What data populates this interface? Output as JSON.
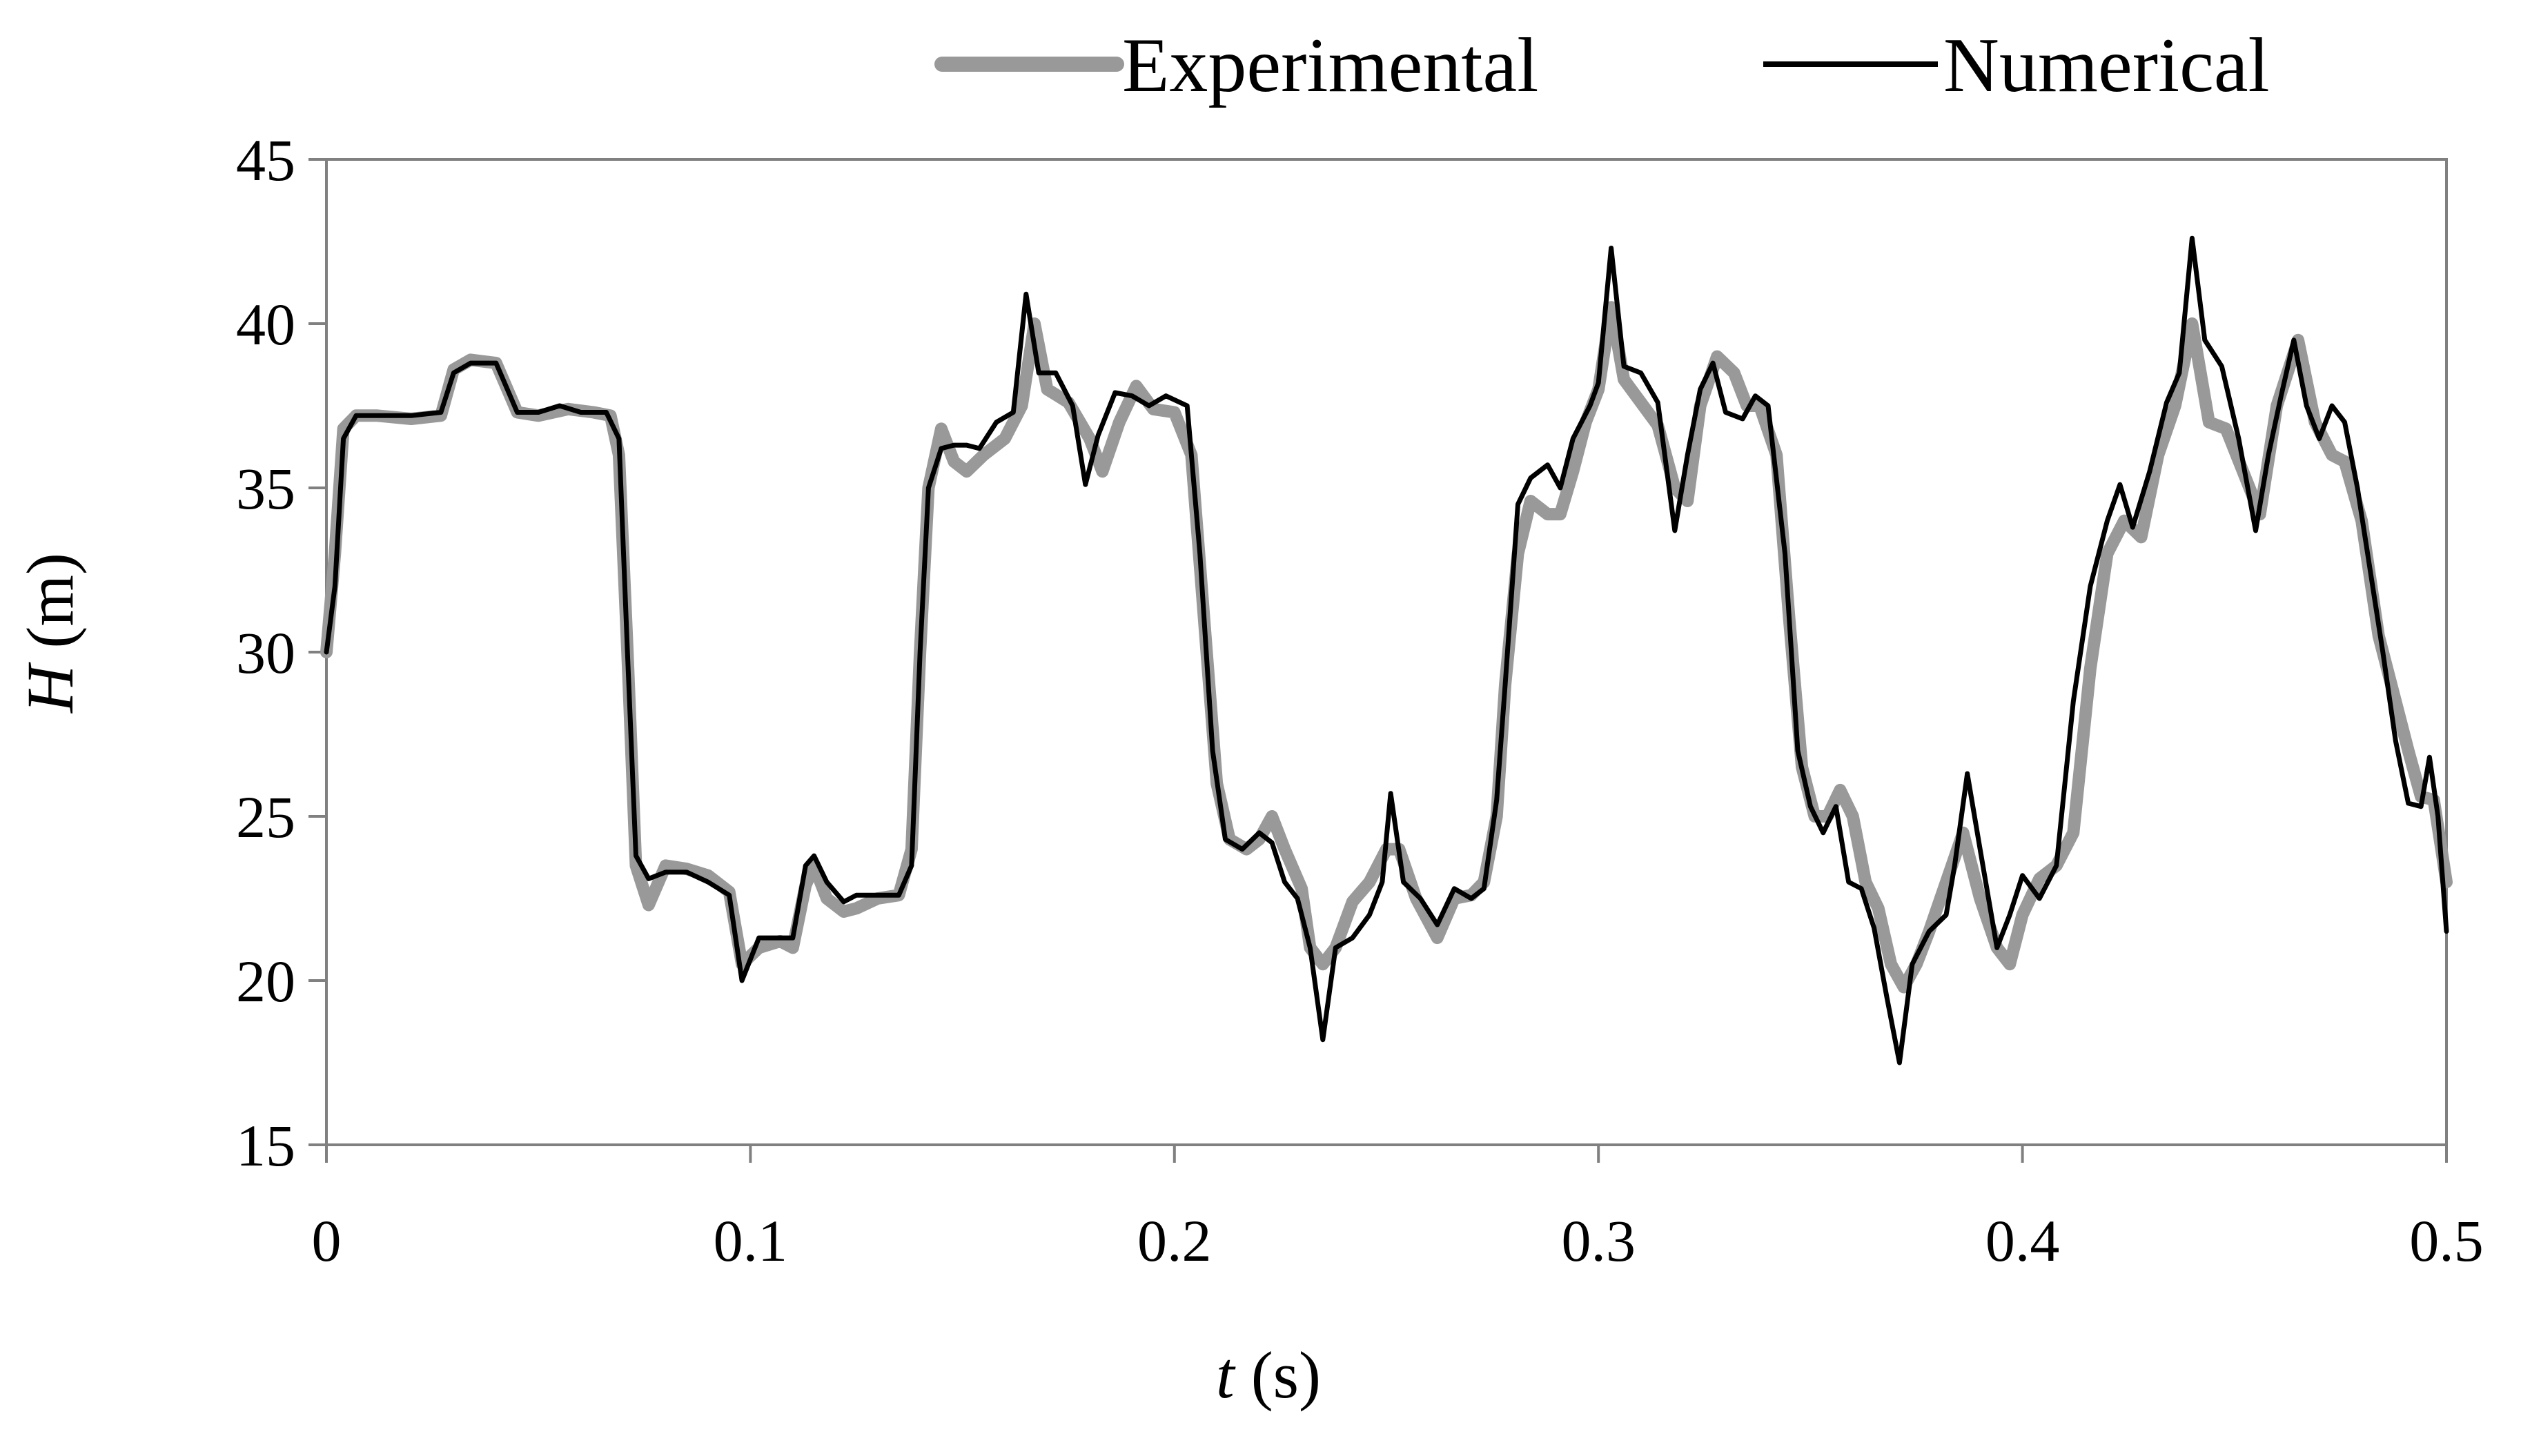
{
  "chart_data": {
    "type": "line",
    "title": "",
    "xlabel": "t (s)",
    "xlabel_italic": "t",
    "xlabel_rest": " (s)",
    "ylabel": "H (m)",
    "ylabel_italic": "H",
    "ylabel_rest": " (m)",
    "xlim": [
      0,
      0.5
    ],
    "ylim": [
      15,
      45
    ],
    "xticks": [
      "0",
      "0.1",
      "0.2",
      "0.3",
      "0.4",
      "0.5"
    ],
    "yticks": [
      "15",
      "20",
      "25",
      "30",
      "35",
      "40",
      "45"
    ],
    "grid": false,
    "legend_position": "top",
    "series": [
      {
        "name": "Experimental",
        "color": "#999999",
        "points": [
          [
            0,
            30
          ],
          [
            0.002,
            33
          ],
          [
            0.004,
            36.8
          ],
          [
            0.007,
            37.2
          ],
          [
            0.012,
            37.2
          ],
          [
            0.02,
            37.1
          ],
          [
            0.027,
            37.2
          ],
          [
            0.03,
            38.6
          ],
          [
            0.034,
            38.9
          ],
          [
            0.04,
            38.8
          ],
          [
            0.045,
            37.3
          ],
          [
            0.05,
            37.2
          ],
          [
            0.057,
            37.4
          ],
          [
            0.063,
            37.3
          ],
          [
            0.067,
            37.2
          ],
          [
            0.069,
            36
          ],
          [
            0.071,
            30
          ],
          [
            0.073,
            23.5
          ],
          [
            0.076,
            22.3
          ],
          [
            0.08,
            23.5
          ],
          [
            0.085,
            23.4
          ],
          [
            0.09,
            23.2
          ],
          [
            0.095,
            22.7
          ],
          [
            0.098,
            20.5
          ],
          [
            0.102,
            21
          ],
          [
            0.107,
            21.2
          ],
          [
            0.11,
            21
          ],
          [
            0.113,
            22.9
          ],
          [
            0.115,
            23.5
          ],
          [
            0.118,
            22.5
          ],
          [
            0.122,
            22.1
          ],
          [
            0.125,
            22.2
          ],
          [
            0.13,
            22.5
          ],
          [
            0.135,
            22.6
          ],
          [
            0.138,
            24
          ],
          [
            0.14,
            30
          ],
          [
            0.142,
            35
          ],
          [
            0.145,
            36.8
          ],
          [
            0.148,
            35.8
          ],
          [
            0.151,
            35.5
          ],
          [
            0.155,
            36
          ],
          [
            0.16,
            36.5
          ],
          [
            0.164,
            37.5
          ],
          [
            0.167,
            40
          ],
          [
            0.17,
            38
          ],
          [
            0.175,
            37.6
          ],
          [
            0.18,
            36.5
          ],
          [
            0.183,
            35.5
          ],
          [
            0.187,
            37
          ],
          [
            0.191,
            38.1
          ],
          [
            0.195,
            37.4
          ],
          [
            0.2,
            37.3
          ],
          [
            0.204,
            36
          ],
          [
            0.207,
            31
          ],
          [
            0.21,
            26
          ],
          [
            0.213,
            24.3
          ],
          [
            0.217,
            24
          ],
          [
            0.22,
            24.3
          ],
          [
            0.223,
            25
          ],
          [
            0.226,
            24
          ],
          [
            0.23,
            22.8
          ],
          [
            0.232,
            21
          ],
          [
            0.235,
            20.5
          ],
          [
            0.238,
            21
          ],
          [
            0.242,
            22.4
          ],
          [
            0.246,
            23
          ],
          [
            0.25,
            24
          ],
          [
            0.253,
            24
          ],
          [
            0.257,
            22.5
          ],
          [
            0.262,
            21.3
          ],
          [
            0.266,
            22.5
          ],
          [
            0.27,
            22.6
          ],
          [
            0.273,
            23
          ],
          [
            0.276,
            25
          ],
          [
            0.278,
            29
          ],
          [
            0.281,
            33
          ],
          [
            0.284,
            34.6
          ],
          [
            0.288,
            34.2
          ],
          [
            0.291,
            34.2
          ],
          [
            0.294,
            35.5
          ],
          [
            0.297,
            37
          ],
          [
            0.3,
            38
          ],
          [
            0.303,
            40.5
          ],
          [
            0.306,
            38.3
          ],
          [
            0.31,
            37.6
          ],
          [
            0.314,
            36.9
          ],
          [
            0.318,
            35
          ],
          [
            0.321,
            34.6
          ],
          [
            0.324,
            37.5
          ],
          [
            0.328,
            39
          ],
          [
            0.332,
            38.5
          ],
          [
            0.335,
            37.5
          ],
          [
            0.338,
            37.5
          ],
          [
            0.342,
            36
          ],
          [
            0.345,
            31
          ],
          [
            0.348,
            26.5
          ],
          [
            0.351,
            25
          ],
          [
            0.354,
            25
          ],
          [
            0.357,
            25.8
          ],
          [
            0.36,
            25
          ],
          [
            0.363,
            23
          ],
          [
            0.366,
            22.2
          ],
          [
            0.369,
            20.5
          ],
          [
            0.372,
            19.8
          ],
          [
            0.375,
            20.5
          ],
          [
            0.378,
            21.5
          ],
          [
            0.382,
            23
          ],
          [
            0.386,
            24.5
          ],
          [
            0.39,
            22.5
          ],
          [
            0.394,
            21
          ],
          [
            0.397,
            20.5
          ],
          [
            0.4,
            22
          ],
          [
            0.404,
            23.1
          ],
          [
            0.408,
            23.5
          ],
          [
            0.412,
            24.5
          ],
          [
            0.416,
            29.5
          ],
          [
            0.42,
            33
          ],
          [
            0.424,
            34
          ],
          [
            0.428,
            33.5
          ],
          [
            0.432,
            36
          ],
          [
            0.436,
            37.5
          ],
          [
            0.44,
            40
          ],
          [
            0.444,
            37
          ],
          [
            0.448,
            36.8
          ],
          [
            0.452,
            35.5
          ],
          [
            0.456,
            34.2
          ],
          [
            0.46,
            37.5
          ],
          [
            0.465,
            39.5
          ],
          [
            0.469,
            37
          ],
          [
            0.473,
            36
          ],
          [
            0.476,
            35.8
          ],
          [
            0.48,
            34
          ],
          [
            0.484,
            30.5
          ],
          [
            0.488,
            28.5
          ],
          [
            0.491,
            27
          ],
          [
            0.494,
            25.6
          ],
          [
            0.497,
            25.5
          ],
          [
            0.5,
            23
          ]
        ]
      },
      {
        "name": "Numerical",
        "color": "#000000",
        "points": [
          [
            0,
            30
          ],
          [
            0.002,
            32
          ],
          [
            0.004,
            36.5
          ],
          [
            0.007,
            37.2
          ],
          [
            0.012,
            37.2
          ],
          [
            0.02,
            37.2
          ],
          [
            0.027,
            37.3
          ],
          [
            0.03,
            38.5
          ],
          [
            0.034,
            38.8
          ],
          [
            0.04,
            38.8
          ],
          [
            0.045,
            37.3
          ],
          [
            0.05,
            37.3
          ],
          [
            0.055,
            37.5
          ],
          [
            0.06,
            37.3
          ],
          [
            0.066,
            37.3
          ],
          [
            0.069,
            36.5
          ],
          [
            0.071,
            30
          ],
          [
            0.073,
            23.8
          ],
          [
            0.076,
            23.1
          ],
          [
            0.08,
            23.3
          ],
          [
            0.085,
            23.3
          ],
          [
            0.09,
            23
          ],
          [
            0.095,
            22.6
          ],
          [
            0.098,
            20
          ],
          [
            0.102,
            21.3
          ],
          [
            0.107,
            21.3
          ],
          [
            0.11,
            21.3
          ],
          [
            0.113,
            23.5
          ],
          [
            0.115,
            23.8
          ],
          [
            0.118,
            23
          ],
          [
            0.122,
            22.4
          ],
          [
            0.125,
            22.6
          ],
          [
            0.13,
            22.6
          ],
          [
            0.135,
            22.6
          ],
          [
            0.138,
            23.5
          ],
          [
            0.14,
            30
          ],
          [
            0.142,
            35
          ],
          [
            0.145,
            36.2
          ],
          [
            0.148,
            36.3
          ],
          [
            0.151,
            36.3
          ],
          [
            0.154,
            36.2
          ],
          [
            0.158,
            37
          ],
          [
            0.162,
            37.3
          ],
          [
            0.165,
            40.9
          ],
          [
            0.168,
            38.5
          ],
          [
            0.172,
            38.5
          ],
          [
            0.176,
            37.5
          ],
          [
            0.179,
            35.1
          ],
          [
            0.182,
            36.6
          ],
          [
            0.186,
            37.9
          ],
          [
            0.19,
            37.8
          ],
          [
            0.194,
            37.5
          ],
          [
            0.198,
            37.8
          ],
          [
            0.203,
            37.5
          ],
          [
            0.206,
            33
          ],
          [
            0.209,
            27
          ],
          [
            0.212,
            24.3
          ],
          [
            0.216,
            24
          ],
          [
            0.22,
            24.5
          ],
          [
            0.223,
            24.2
          ],
          [
            0.226,
            23
          ],
          [
            0.229,
            22.5
          ],
          [
            0.232,
            21
          ],
          [
            0.235,
            18.2
          ],
          [
            0.238,
            21
          ],
          [
            0.242,
            21.3
          ],
          [
            0.246,
            22
          ],
          [
            0.249,
            23
          ],
          [
            0.251,
            25.7
          ],
          [
            0.254,
            23
          ],
          [
            0.258,
            22.5
          ],
          [
            0.262,
            21.7
          ],
          [
            0.266,
            22.8
          ],
          [
            0.27,
            22.5
          ],
          [
            0.273,
            22.8
          ],
          [
            0.276,
            25.5
          ],
          [
            0.278,
            29
          ],
          [
            0.281,
            34.5
          ],
          [
            0.284,
            35.3
          ],
          [
            0.288,
            35.7
          ],
          [
            0.291,
            35
          ],
          [
            0.294,
            36.5
          ],
          [
            0.298,
            37.5
          ],
          [
            0.3,
            38.2
          ],
          [
            0.303,
            42.3
          ],
          [
            0.306,
            38.7
          ],
          [
            0.31,
            38.5
          ],
          [
            0.314,
            37.6
          ],
          [
            0.318,
            33.7
          ],
          [
            0.321,
            36
          ],
          [
            0.324,
            38
          ],
          [
            0.327,
            38.8
          ],
          [
            0.33,
            37.3
          ],
          [
            0.334,
            37.1
          ],
          [
            0.337,
            37.8
          ],
          [
            0.34,
            37.5
          ],
          [
            0.344,
            33
          ],
          [
            0.347,
            27
          ],
          [
            0.35,
            25.3
          ],
          [
            0.353,
            24.5
          ],
          [
            0.356,
            25.3
          ],
          [
            0.359,
            23
          ],
          [
            0.362,
            22.8
          ],
          [
            0.365,
            21.6
          ],
          [
            0.368,
            19.5
          ],
          [
            0.371,
            17.5
          ],
          [
            0.374,
            20.5
          ],
          [
            0.378,
            21.5
          ],
          [
            0.382,
            22
          ],
          [
            0.384,
            23.5
          ],
          [
            0.387,
            26.3
          ],
          [
            0.39,
            24
          ],
          [
            0.394,
            21
          ],
          [
            0.397,
            22
          ],
          [
            0.4,
            23.2
          ],
          [
            0.404,
            22.5
          ],
          [
            0.408,
            23.5
          ],
          [
            0.412,
            28.5
          ],
          [
            0.416,
            32
          ],
          [
            0.42,
            34
          ],
          [
            0.423,
            35.1
          ],
          [
            0.426,
            33.8
          ],
          [
            0.43,
            35.5
          ],
          [
            0.434,
            37.6
          ],
          [
            0.437,
            38.5
          ],
          [
            0.44,
            42.6
          ],
          [
            0.443,
            39.5
          ],
          [
            0.447,
            38.7
          ],
          [
            0.451,
            36.5
          ],
          [
            0.455,
            33.7
          ],
          [
            0.458,
            36
          ],
          [
            0.461,
            37.8
          ],
          [
            0.464,
            39.5
          ],
          [
            0.467,
            37.5
          ],
          [
            0.47,
            36.5
          ],
          [
            0.473,
            37.5
          ],
          [
            0.476,
            37
          ],
          [
            0.479,
            35
          ],
          [
            0.482,
            32.5
          ],
          [
            0.485,
            30
          ],
          [
            0.488,
            27.3
          ],
          [
            0.491,
            25.4
          ],
          [
            0.494,
            25.3
          ],
          [
            0.496,
            26.8
          ],
          [
            0.498,
            25
          ],
          [
            0.5,
            21.5
          ]
        ]
      }
    ]
  }
}
